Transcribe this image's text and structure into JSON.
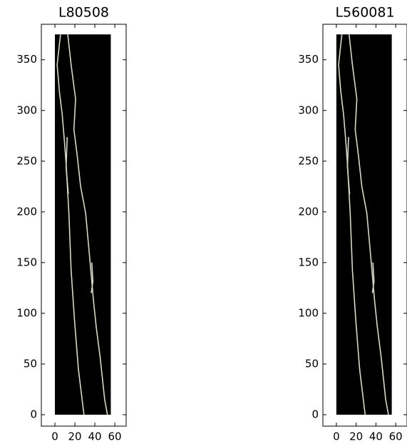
{
  "chart_data": [
    {
      "type": "image",
      "title": "L80508",
      "extent": [
        0,
        56,
        0,
        375
      ],
      "xlim": [
        -13.6,
        71.4
      ],
      "ylim": [
        -11.3,
        385
      ],
      "xticks": [
        0,
        20,
        40,
        60
      ],
      "yticks": [
        0,
        50,
        100,
        150,
        200,
        250,
        300,
        350
      ]
    },
    {
      "type": "image",
      "title": "L560081",
      "extent": [
        0,
        56,
        0,
        375
      ],
      "xlim": [
        -13.6,
        71.4
      ],
      "ylim": [
        -11.3,
        385
      ],
      "xticks": [
        0,
        20,
        40,
        60
      ],
      "yticks": [
        0,
        50,
        100,
        150,
        200,
        250,
        300,
        350
      ]
    }
  ]
}
